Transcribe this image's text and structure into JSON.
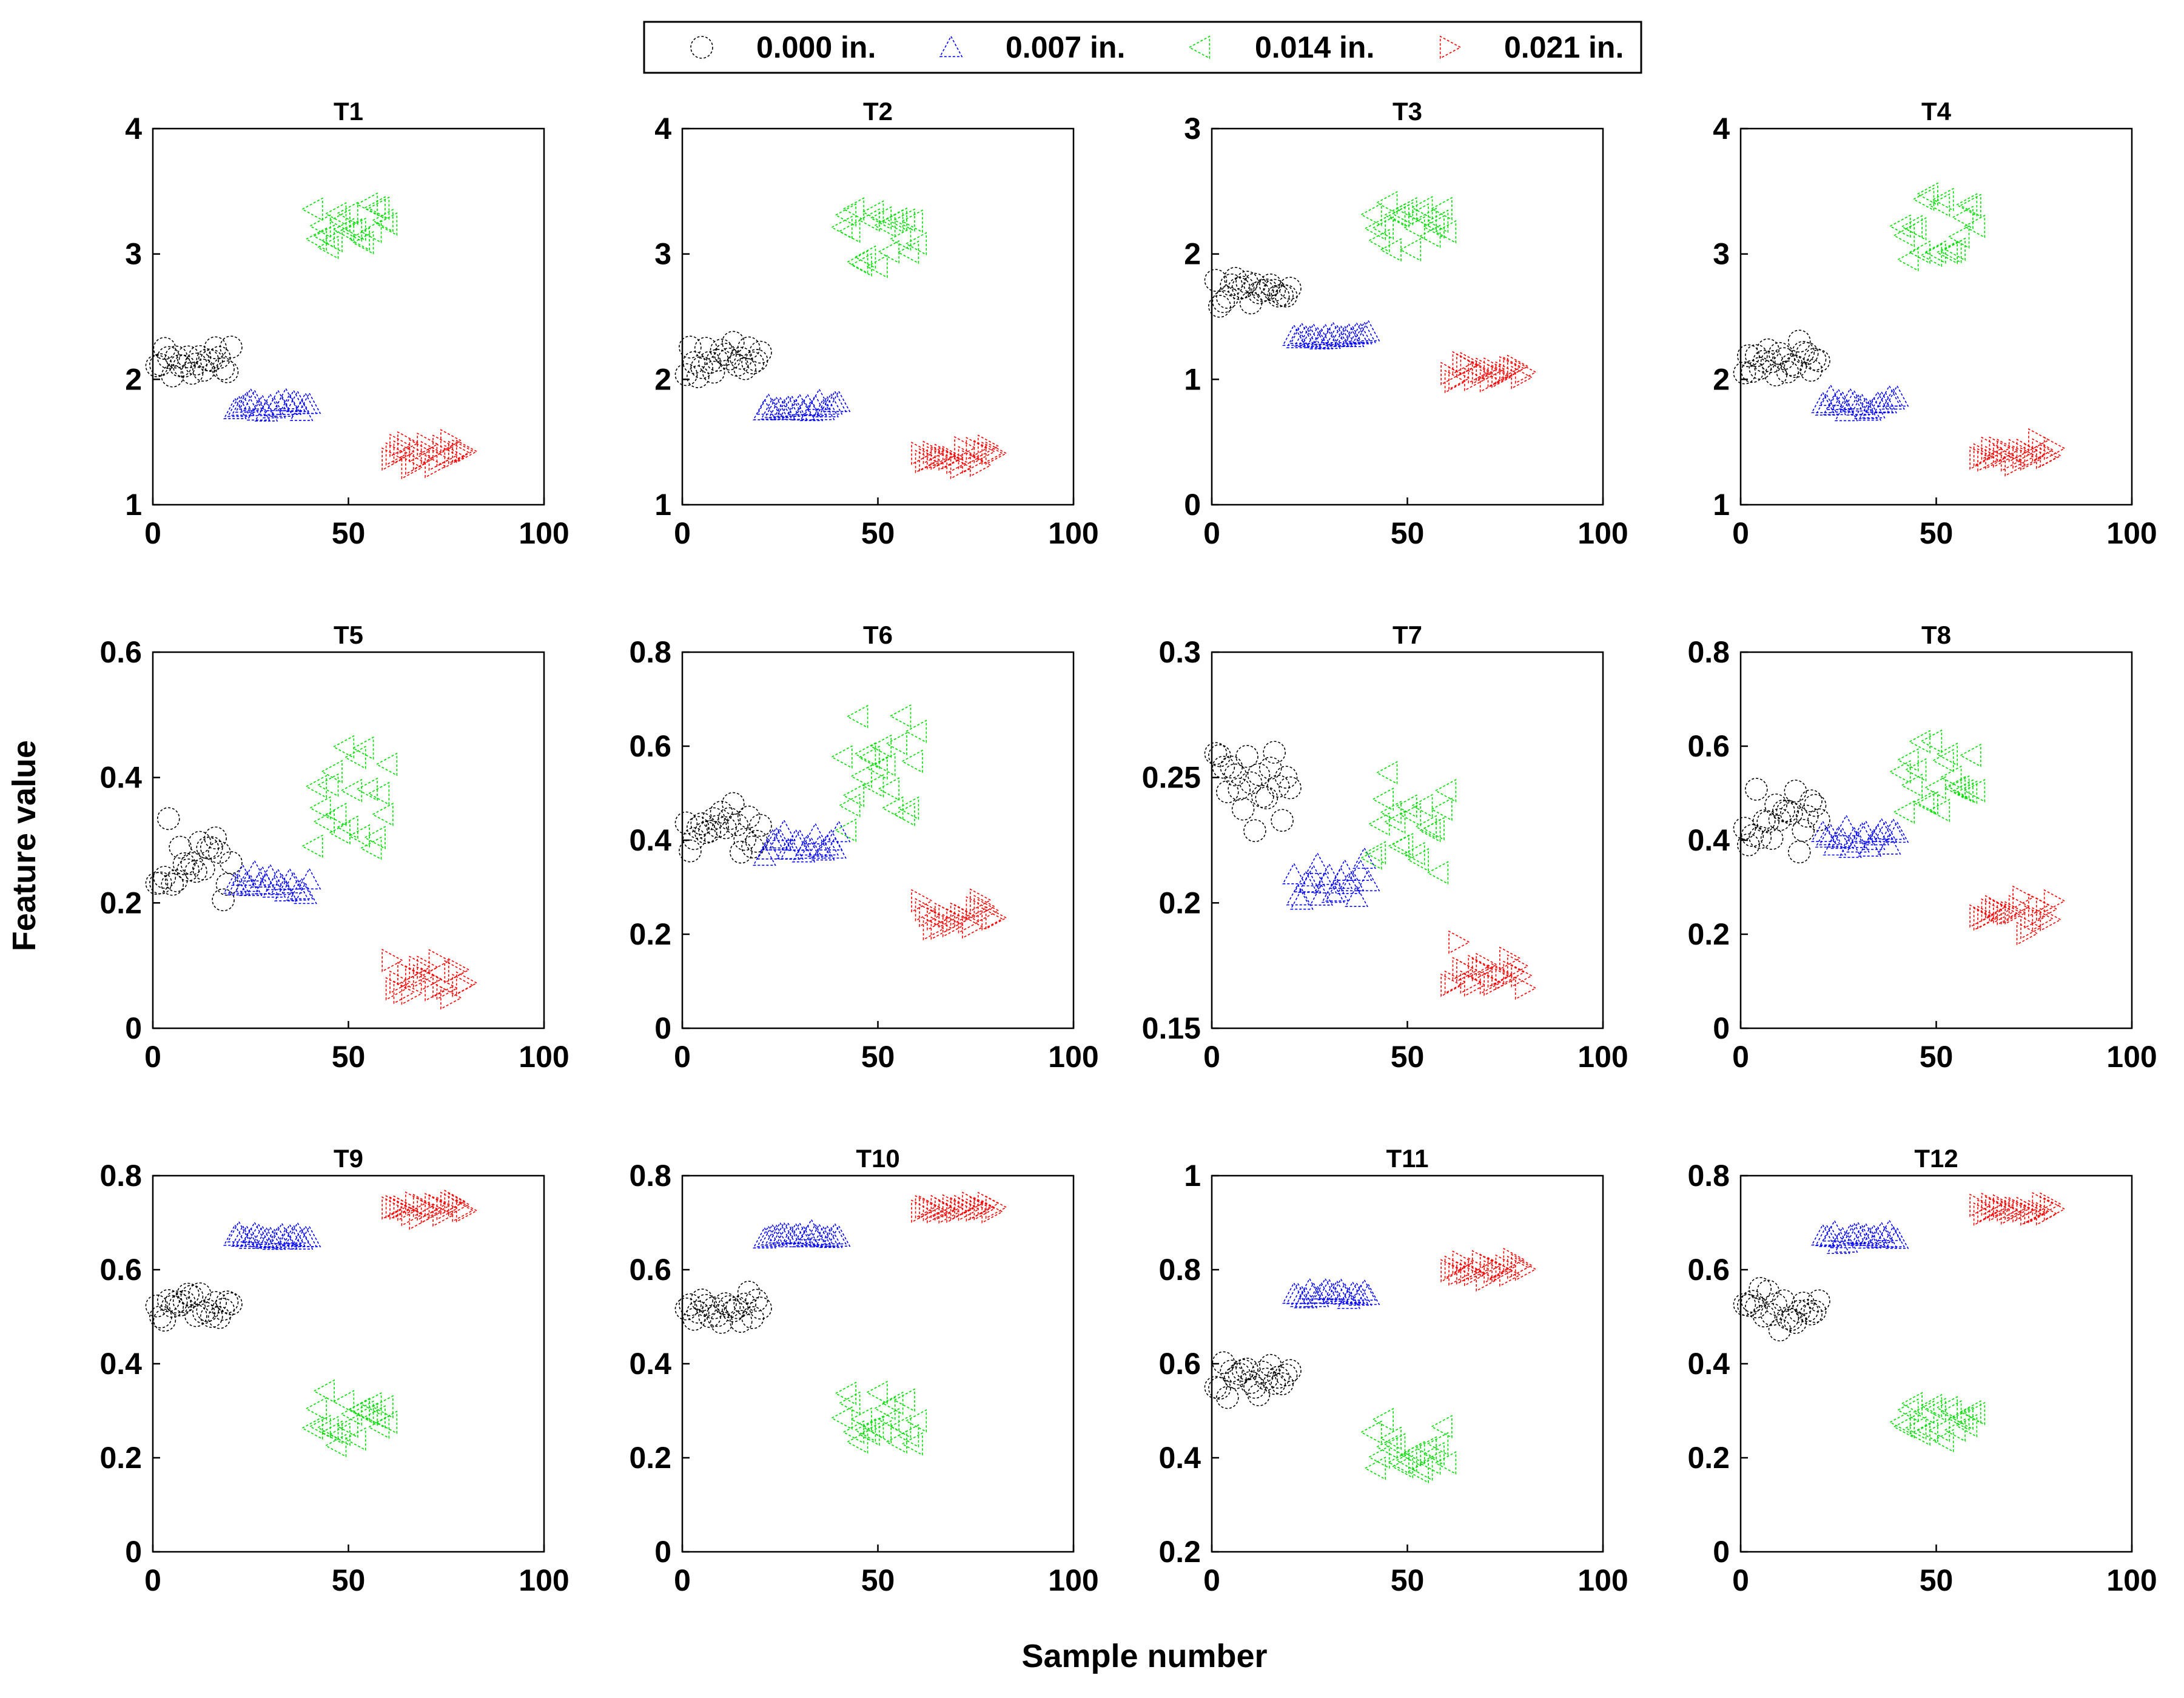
{
  "figure": {
    "xlabel": "Sample number",
    "ylabel": "Feature value"
  },
  "colors": {
    "0.000 in.": "#000000",
    "0.007 in.": "#0000ff",
    "0.014 in.": "#00dd00",
    "0.021 in.": "#ff0000"
  },
  "legend": {
    "placement": "top-center",
    "entries": [
      {
        "label": "0.000 in.",
        "marker": "circle",
        "color": "#000000"
      },
      {
        "label": "0.007 in.",
        "marker": "triangle-up",
        "color": "#0000ff"
      },
      {
        "label": "0.014 in.",
        "marker": "triangle-left",
        "color": "#00dd00"
      },
      {
        "label": "0.021 in.",
        "marker": "triangle-right",
        "color": "#ff0000"
      }
    ]
  },
  "chart_data": [
    {
      "type": "scatter",
      "title": "T1",
      "xlabel": "Sample number",
      "ylabel": "Feature value",
      "xlim": [
        0,
        100
      ],
      "ylim": [
        1,
        4
      ],
      "xticks": [
        "0",
        "50",
        "100"
      ],
      "yticks": [
        "1",
        "2",
        "3",
        "4"
      ],
      "series": [
        {
          "name": "0.000 in.",
          "marker": "circle",
          "x_range": [
            1,
            20
          ],
          "center": 2.15,
          "spread": 0.12
        },
        {
          "name": "0.007 in.",
          "marker": "triangle-up",
          "x_range": [
            21,
            40
          ],
          "center": 1.8,
          "spread": 0.05
        },
        {
          "name": "0.014 in.",
          "marker": "triangle-left",
          "x_range": [
            41,
            60
          ],
          "center": 3.2,
          "spread": 0.25
        },
        {
          "name": "0.021 in.",
          "marker": "triangle-right",
          "x_range": [
            61,
            80
          ],
          "center": 1.4,
          "spread": 0.08
        }
      ]
    },
    {
      "type": "scatter",
      "title": "T2",
      "xlabel": "Sample number",
      "ylabel": "Feature value",
      "xlim": [
        0,
        100
      ],
      "ylim": [
        1,
        4
      ],
      "xticks": [
        "0",
        "50",
        "100"
      ],
      "yticks": [
        "1",
        "2",
        "3",
        "4"
      ],
      "series": [
        {
          "name": "0.000 in.",
          "marker": "circle",
          "x_range": [
            1,
            20
          ],
          "center": 2.15,
          "spread": 0.12
        },
        {
          "name": "0.007 in.",
          "marker": "triangle-up",
          "x_range": [
            21,
            40
          ],
          "center": 1.78,
          "spread": 0.05
        },
        {
          "name": "0.014 in.",
          "marker": "triangle-left",
          "x_range": [
            41,
            60
          ],
          "center": 3.15,
          "spread": 0.25
        },
        {
          "name": "0.021 in.",
          "marker": "triangle-right",
          "x_range": [
            61,
            80
          ],
          "center": 1.4,
          "spread": 0.08
        }
      ]
    },
    {
      "type": "scatter",
      "title": "T3",
      "xlabel": "Sample number",
      "ylabel": "Feature value",
      "xlim": [
        0,
        100
      ],
      "ylim": [
        0,
        3
      ],
      "xticks": [
        "0",
        "50",
        "100"
      ],
      "yticks": [
        "0",
        "1",
        "2",
        "3"
      ],
      "series": [
        {
          "name": "0.000 in.",
          "marker": "circle",
          "x_range": [
            1,
            20
          ],
          "center": 1.7,
          "spread": 0.1
        },
        {
          "name": "0.007 in.",
          "marker": "triangle-up",
          "x_range": [
            21,
            40
          ],
          "center": 1.35,
          "spread": 0.03
        },
        {
          "name": "0.014 in.",
          "marker": "triangle-left",
          "x_range": [
            41,
            60
          ],
          "center": 2.25,
          "spread": 0.2
        },
        {
          "name": "0.021 in.",
          "marker": "triangle-right",
          "x_range": [
            61,
            80
          ],
          "center": 1.05,
          "spread": 0.08
        }
      ]
    },
    {
      "type": "scatter",
      "title": "T4",
      "xlabel": "Sample number",
      "ylabel": "Feature value",
      "xlim": [
        0,
        100
      ],
      "ylim": [
        1,
        4
      ],
      "xticks": [
        "0",
        "50",
        "100"
      ],
      "yticks": [
        "1",
        "2",
        "3",
        "4"
      ],
      "series": [
        {
          "name": "0.000 in.",
          "marker": "circle",
          "x_range": [
            1,
            20
          ],
          "center": 2.15,
          "spread": 0.12
        },
        {
          "name": "0.007 in.",
          "marker": "triangle-up",
          "x_range": [
            21,
            40
          ],
          "center": 1.8,
          "spread": 0.05
        },
        {
          "name": "0.014 in.",
          "marker": "triangle-left",
          "x_range": [
            41,
            60
          ],
          "center": 3.2,
          "spread": 0.25
        },
        {
          "name": "0.021 in.",
          "marker": "triangle-right",
          "x_range": [
            61,
            80
          ],
          "center": 1.4,
          "spread": 0.08
        }
      ]
    },
    {
      "type": "scatter",
      "title": "T5",
      "xlabel": "Sample number",
      "ylabel": "Feature value",
      "xlim": [
        0,
        100
      ],
      "ylim": [
        0,
        0.6
      ],
      "xticks": [
        "0",
        "50",
        "100"
      ],
      "yticks": [
        "0",
        "0.2",
        "0.4",
        "0.6"
      ],
      "series": [
        {
          "name": "0.000 in.",
          "marker": "circle",
          "x_range": [
            1,
            20
          ],
          "center": 0.26,
          "spread": 0.05
        },
        {
          "name": "0.007 in.",
          "marker": "triangle-up",
          "x_range": [
            21,
            40
          ],
          "center": 0.23,
          "spread": 0.02
        },
        {
          "name": "0.014 in.",
          "marker": "triangle-left",
          "x_range": [
            41,
            60
          ],
          "center": 0.37,
          "spread": 0.09
        },
        {
          "name": "0.021 in.",
          "marker": "triangle-right",
          "x_range": [
            61,
            80
          ],
          "center": 0.08,
          "spread": 0.03
        }
      ]
    },
    {
      "type": "scatter",
      "title": "T6",
      "xlabel": "Sample number",
      "ylabel": "Feature value",
      "xlim": [
        0,
        100
      ],
      "ylim": [
        0,
        0.8
      ],
      "xticks": [
        "0",
        "50",
        "100"
      ],
      "yticks": [
        "0",
        "0.2",
        "0.4",
        "0.6",
        "0.8"
      ],
      "series": [
        {
          "name": "0.000 in.",
          "marker": "circle",
          "x_range": [
            1,
            20
          ],
          "center": 0.44,
          "spread": 0.05
        },
        {
          "name": "0.007 in.",
          "marker": "triangle-up",
          "x_range": [
            21,
            40
          ],
          "center": 0.39,
          "spread": 0.02
        },
        {
          "name": "0.014 in.",
          "marker": "triangle-left",
          "x_range": [
            41,
            60
          ],
          "center": 0.54,
          "spread": 0.09
        },
        {
          "name": "0.021 in.",
          "marker": "triangle-right",
          "x_range": [
            61,
            80
          ],
          "center": 0.24,
          "spread": 0.03
        }
      ]
    },
    {
      "type": "scatter",
      "title": "T7",
      "xlabel": "Sample number",
      "ylabel": "Feature value",
      "xlim": [
        0,
        100
      ],
      "ylim": [
        0.15,
        0.3
      ],
      "xticks": [
        "0",
        "50",
        "100"
      ],
      "yticks": [
        "0.15",
        "0.2",
        "0.25",
        "0.3"
      ],
      "series": [
        {
          "name": "0.000 in.",
          "marker": "circle",
          "x_range": [
            1,
            20
          ],
          "center": 0.25,
          "spread": 0.015
        },
        {
          "name": "0.007 in.",
          "marker": "triangle-up",
          "x_range": [
            21,
            40
          ],
          "center": 0.208,
          "spread": 0.006
        },
        {
          "name": "0.014 in.",
          "marker": "triangle-left",
          "x_range": [
            41,
            60
          ],
          "center": 0.23,
          "spread": 0.02
        },
        {
          "name": "0.021 in.",
          "marker": "triangle-right",
          "x_range": [
            61,
            80
          ],
          "center": 0.173,
          "spread": 0.007
        }
      ]
    },
    {
      "type": "scatter",
      "title": "T8",
      "xlabel": "Sample number",
      "ylabel": "Feature value",
      "xlim": [
        0,
        100
      ],
      "ylim": [
        0,
        0.8
      ],
      "xticks": [
        "0",
        "50",
        "100"
      ],
      "yticks": [
        "0",
        "0.2",
        "0.4",
        "0.6",
        "0.8"
      ],
      "series": [
        {
          "name": "0.000 in.",
          "marker": "circle",
          "x_range": [
            1,
            20
          ],
          "center": 0.45,
          "spread": 0.05
        },
        {
          "name": "0.007 in.",
          "marker": "triangle-up",
          "x_range": [
            21,
            40
          ],
          "center": 0.41,
          "spread": 0.025
        },
        {
          "name": "0.014 in.",
          "marker": "triangle-left",
          "x_range": [
            41,
            60
          ],
          "center": 0.54,
          "spread": 0.09
        },
        {
          "name": "0.021 in.",
          "marker": "triangle-right",
          "x_range": [
            61,
            80
          ],
          "center": 0.24,
          "spread": 0.03
        }
      ]
    },
    {
      "type": "scatter",
      "title": "T9",
      "xlabel": "Sample number",
      "ylabel": "Feature value",
      "xlim": [
        0,
        100
      ],
      "ylim": [
        0,
        0.8
      ],
      "xticks": [
        "0",
        "50",
        "100"
      ],
      "yticks": [
        "0",
        "0.2",
        "0.4",
        "0.6",
        "0.8"
      ],
      "series": [
        {
          "name": "0.000 in.",
          "marker": "circle",
          "x_range": [
            1,
            20
          ],
          "center": 0.52,
          "spread": 0.03
        },
        {
          "name": "0.007 in.",
          "marker": "triangle-up",
          "x_range": [
            21,
            40
          ],
          "center": 0.67,
          "spread": 0.01
        },
        {
          "name": "0.014 in.",
          "marker": "triangle-left",
          "x_range": [
            41,
            60
          ],
          "center": 0.28,
          "spread": 0.05
        },
        {
          "name": "0.021 in.",
          "marker": "triangle-right",
          "x_range": [
            61,
            80
          ],
          "center": 0.73,
          "spread": 0.015
        }
      ]
    },
    {
      "type": "scatter",
      "title": "T10",
      "xlabel": "Sample number",
      "ylabel": "Feature value",
      "xlim": [
        0,
        100
      ],
      "ylim": [
        0,
        0.8
      ],
      "xticks": [
        "0",
        "50",
        "100"
      ],
      "yticks": [
        "0",
        "0.2",
        "0.4",
        "0.6",
        "0.8"
      ],
      "series": [
        {
          "name": "0.000 in.",
          "marker": "circle",
          "x_range": [
            1,
            20
          ],
          "center": 0.52,
          "spread": 0.03
        },
        {
          "name": "0.007 in.",
          "marker": "triangle-up",
          "x_range": [
            21,
            40
          ],
          "center": 0.67,
          "spread": 0.01
        },
        {
          "name": "0.014 in.",
          "marker": "triangle-left",
          "x_range": [
            41,
            60
          ],
          "center": 0.28,
          "spread": 0.05
        },
        {
          "name": "0.021 in.",
          "marker": "triangle-right",
          "x_range": [
            61,
            80
          ],
          "center": 0.73,
          "spread": 0.015
        }
      ]
    },
    {
      "type": "scatter",
      "title": "T11",
      "xlabel": "Sample number",
      "ylabel": "Feature value",
      "xlim": [
        0,
        100
      ],
      "ylim": [
        0.2,
        1
      ],
      "xticks": [
        "0",
        "50",
        "100"
      ],
      "yticks": [
        "0.2",
        "0.4",
        "0.6",
        "0.8",
        "1"
      ],
      "series": [
        {
          "name": "0.000 in.",
          "marker": "circle",
          "x_range": [
            1,
            20
          ],
          "center": 0.57,
          "spread": 0.03
        },
        {
          "name": "0.007 in.",
          "marker": "triangle-up",
          "x_range": [
            21,
            40
          ],
          "center": 0.75,
          "spread": 0.01
        },
        {
          "name": "0.014 in.",
          "marker": "triangle-left",
          "x_range": [
            41,
            60
          ],
          "center": 0.41,
          "spread": 0.05
        },
        {
          "name": "0.021 in.",
          "marker": "triangle-right",
          "x_range": [
            61,
            80
          ],
          "center": 0.8,
          "spread": 0.015
        }
      ]
    },
    {
      "type": "scatter",
      "title": "T12",
      "xlabel": "Sample number",
      "ylabel": "Feature value",
      "xlim": [
        0,
        100
      ],
      "ylim": [
        0,
        0.8
      ],
      "xticks": [
        "0",
        "50",
        "100"
      ],
      "yticks": [
        "0",
        "0.2",
        "0.4",
        "0.6",
        "0.8"
      ],
      "series": [
        {
          "name": "0.000 in.",
          "marker": "circle",
          "x_range": [
            1,
            20
          ],
          "center": 0.52,
          "spread": 0.03
        },
        {
          "name": "0.007 in.",
          "marker": "triangle-up",
          "x_range": [
            21,
            40
          ],
          "center": 0.67,
          "spread": 0.01
        },
        {
          "name": "0.014 in.",
          "marker": "triangle-left",
          "x_range": [
            41,
            60
          ],
          "center": 0.28,
          "spread": 0.05
        },
        {
          "name": "0.021 in.",
          "marker": "triangle-right",
          "x_range": [
            61,
            80
          ],
          "center": 0.73,
          "spread": 0.015
        }
      ]
    }
  ]
}
